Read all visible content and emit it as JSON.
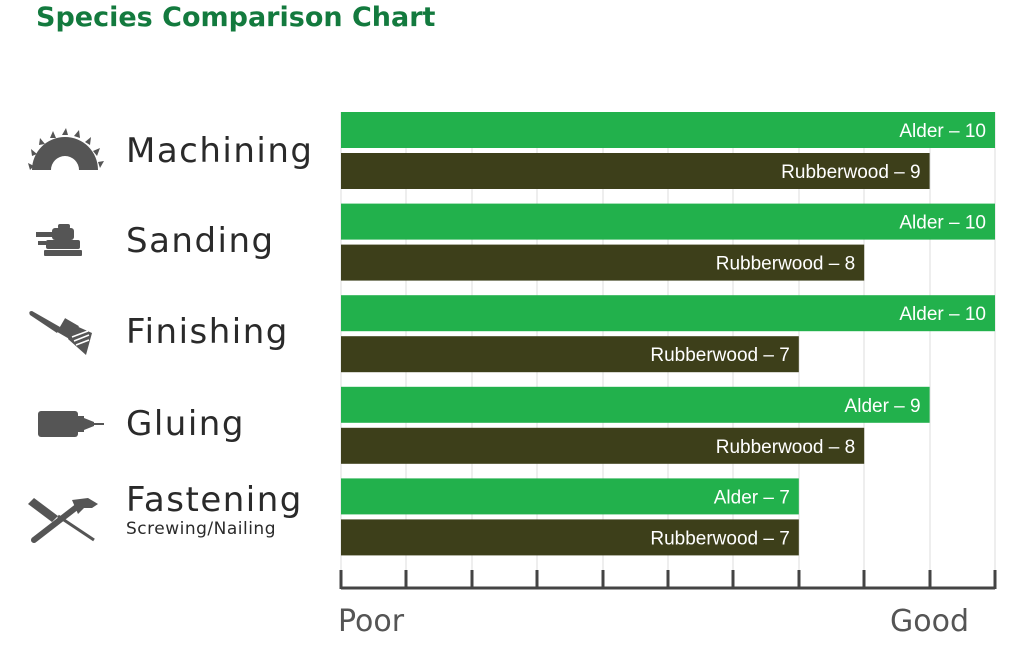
{
  "title": "Species Comparison Chart",
  "colors": {
    "title": "#137a3e",
    "alder": "#22b14c",
    "rubberwood": "#3d3f1a",
    "axis": "#444444"
  },
  "categories": [
    {
      "label": "Machining",
      "sub": "",
      "icon": "saw-blade-icon"
    },
    {
      "label": "Sanding",
      "sub": "",
      "icon": "orbital-sander-icon"
    },
    {
      "label": "Finishing",
      "sub": "",
      "icon": "paintbrush-icon"
    },
    {
      "label": "Gluing",
      "sub": "",
      "icon": "glue-bottle-icon"
    },
    {
      "label": "Fastening",
      "sub": "Screwing/Nailing",
      "icon": "hammer-screwdriver-icon"
    }
  ],
  "axis": {
    "left_label": "Poor",
    "right_label": "Good"
  },
  "chart_data": {
    "type": "bar",
    "orientation": "horizontal",
    "title": "Species Comparison Chart",
    "categories": [
      "Machining",
      "Sanding",
      "Finishing",
      "Gluing",
      "Fastening"
    ],
    "series": [
      {
        "name": "Alder",
        "values": [
          10,
          10,
          10,
          9,
          7
        ],
        "labels": [
          "Alder – 10",
          "Alder – 10",
          "Alder – 10",
          "Alder – 9",
          "Alder – 7"
        ]
      },
      {
        "name": "Rubberwood",
        "values": [
          9,
          8,
          7,
          8,
          7
        ],
        "labels": [
          "Rubberwood – 9",
          "Rubberwood – 8",
          "Rubberwood – 7",
          "Rubberwood – 8",
          "Rubberwood – 7"
        ]
      }
    ],
    "xlim": [
      0,
      10
    ],
    "xlabel_left": "Poor",
    "xlabel_right": "Good",
    "grid": true
  }
}
